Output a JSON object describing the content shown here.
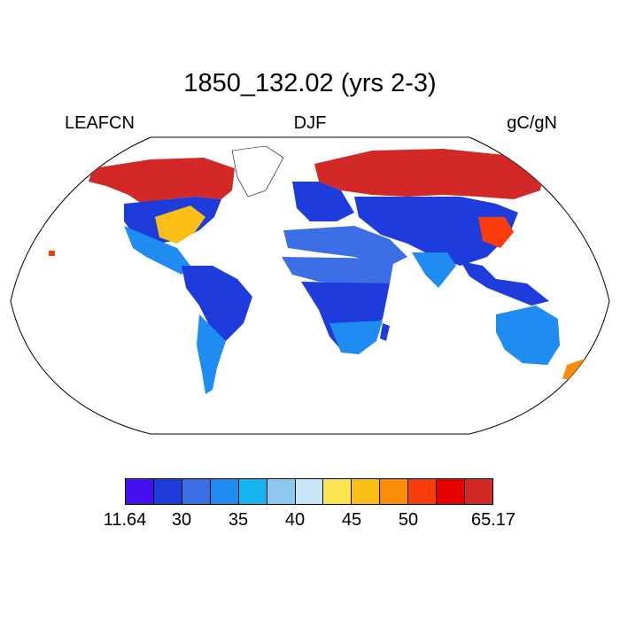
{
  "title": "1850_132.02 (yrs 2-3)",
  "variable": "LEAFCN",
  "season": "DJF",
  "units": "gC/gN",
  "colorbar": {
    "colors": [
      "#4410f0",
      "#1e3cdc",
      "#3c6ee6",
      "#1e8cf0",
      "#14b4f0",
      "#8cc8f0",
      "#c8e6f8",
      "#fae650",
      "#fabe14",
      "#fa8c0a",
      "#fa3c0a",
      "#e60000",
      "#d22828"
    ],
    "tick_labels": [
      "11.64",
      "30",
      "35",
      "40",
      "45",
      "50",
      "65.17"
    ]
  },
  "chart_data": {
    "type": "map",
    "projection": "Robinson",
    "title": "1850_132.02 (yrs 2-3)",
    "field": "LEAFCN",
    "season": "DJF",
    "units": "gC/gN",
    "colorbar_min": 11.64,
    "colorbar_max": 65.17,
    "colorbar_ticks": [
      11.64,
      30,
      35,
      40,
      45,
      50,
      65.17
    ]
  }
}
